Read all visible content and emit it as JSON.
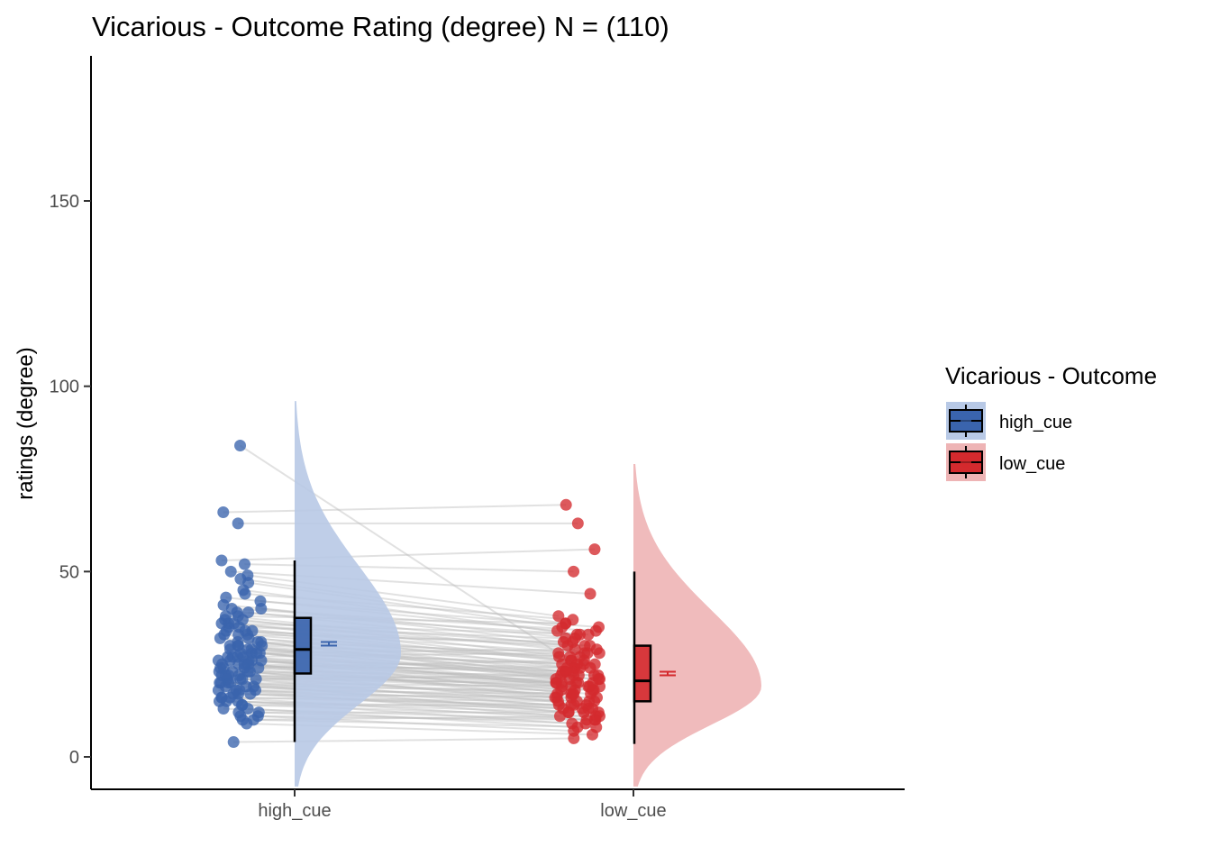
{
  "chart_data": {
    "type": "raincloud",
    "title": "Vicarious - Outcome Rating (degree) N = (110)",
    "xlabel": "",
    "ylabel": "ratings (degree)",
    "ylim": [
      -9,
      190
    ],
    "yticks": [
      0,
      50,
      100,
      150
    ],
    "categories": [
      "high_cue",
      "low_cue"
    ],
    "legend": {
      "title": "Vicarious - Outcome",
      "position": "right",
      "entries": [
        "high_cue",
        "low_cue"
      ]
    },
    "grid": false,
    "series": [
      {
        "name": "high_cue",
        "color": "#3a64ad",
        "fill_light": "#b8c9e6",
        "box": {
          "min": 4,
          "q1": 22.5,
          "median": 29,
          "q3": 37.5,
          "max": 53
        },
        "mean": 30.5,
        "density_range": [
          -8,
          96
        ],
        "density_peak": 28
      },
      {
        "name": "low_cue",
        "color": "#d42a2e",
        "fill_light": "#eeb4b5",
        "box": {
          "min": 3.5,
          "q1": 15,
          "median": 20.5,
          "q3": 30,
          "max": 50
        },
        "mean": 22.5,
        "density_range": [
          -8,
          79
        ],
        "density_peak": 19
      }
    ],
    "paired_values": [
      [
        84,
        24
      ],
      [
        66,
        68
      ],
      [
        63,
        63
      ],
      [
        53,
        56
      ],
      [
        52,
        50
      ],
      [
        50,
        44
      ],
      [
        49,
        38
      ],
      [
        48,
        36
      ],
      [
        47,
        35
      ],
      [
        45,
        33
      ],
      [
        43,
        34
      ],
      [
        42,
        35
      ],
      [
        41,
        32
      ],
      [
        40,
        31
      ],
      [
        39,
        33
      ],
      [
        39,
        30
      ],
      [
        38,
        28
      ],
      [
        38,
        36
      ],
      [
        37,
        27
      ],
      [
        37,
        30
      ],
      [
        36,
        26
      ],
      [
        36,
        29
      ],
      [
        35,
        25
      ],
      [
        35,
        32
      ],
      [
        34,
        24
      ],
      [
        34,
        28
      ],
      [
        33,
        23
      ],
      [
        33,
        27
      ],
      [
        32,
        22
      ],
      [
        32,
        26
      ],
      [
        31,
        21
      ],
      [
        31,
        25
      ],
      [
        30,
        20
      ],
      [
        30,
        24
      ],
      [
        30,
        23
      ],
      [
        29,
        22
      ],
      [
        29,
        19
      ],
      [
        28,
        21
      ],
      [
        28,
        18
      ],
      [
        28,
        25
      ],
      [
        27,
        20
      ],
      [
        27,
        17
      ],
      [
        27,
        23
      ],
      [
        26,
        19
      ],
      [
        26,
        22
      ],
      [
        26,
        16
      ],
      [
        25,
        18
      ],
      [
        25,
        21
      ],
      [
        25,
        15
      ],
      [
        24,
        20
      ],
      [
        24,
        17
      ],
      [
        24,
        24
      ],
      [
        23,
        19
      ],
      [
        23,
        14
      ],
      [
        23,
        22
      ],
      [
        22,
        18
      ],
      [
        22,
        16
      ],
      [
        22,
        21
      ],
      [
        21,
        13
      ],
      [
        21,
        20
      ],
      [
        21,
        17
      ],
      [
        20,
        15
      ],
      [
        20,
        19
      ],
      [
        20,
        12
      ],
      [
        19,
        18
      ],
      [
        19,
        16
      ],
      [
        19,
        14
      ],
      [
        18,
        11
      ],
      [
        18,
        17
      ],
      [
        18,
        15
      ],
      [
        17,
        13
      ],
      [
        17,
        16
      ],
      [
        17,
        12
      ],
      [
        16,
        14
      ],
      [
        16,
        10
      ],
      [
        16,
        15
      ],
      [
        15,
        12
      ],
      [
        15,
        13
      ],
      [
        15,
        9
      ],
      [
        14,
        11
      ],
      [
        14,
        14
      ],
      [
        13,
        10
      ],
      [
        13,
        8
      ],
      [
        12,
        9
      ],
      [
        12,
        12
      ],
      [
        11,
        7
      ],
      [
        11,
        10
      ],
      [
        10,
        8
      ],
      [
        10,
        11
      ],
      [
        9,
        6
      ],
      [
        27,
        28
      ],
      [
        30,
        27
      ],
      [
        33,
        31
      ],
      [
        26,
        24
      ],
      [
        28,
        29
      ],
      [
        31,
        28
      ],
      [
        24,
        26
      ],
      [
        22,
        19
      ],
      [
        29,
        25
      ],
      [
        25,
        23
      ],
      [
        21,
        22
      ],
      [
        23,
        20
      ],
      [
        26,
        20
      ],
      [
        20,
        17
      ],
      [
        34,
        30
      ],
      [
        36,
        33
      ],
      [
        40,
        34
      ],
      [
        44,
        37
      ],
      [
        18,
        13
      ],
      [
        4,
        5
      ]
    ]
  }
}
